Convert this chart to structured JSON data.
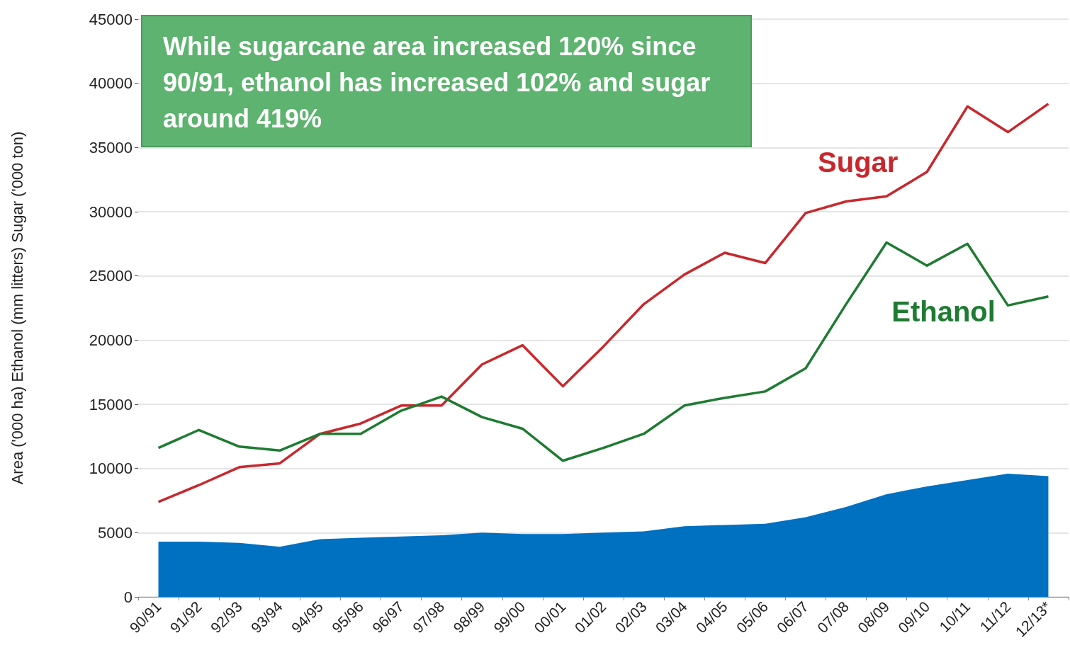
{
  "chart_data": {
    "type": "line",
    "ylabel": "Area ('000 ha) Ethanol (mm litters) Sugar ('000 ton)",
    "annotations": [
      "While sugarcane area increased 120% since 90/91, ethanol has increased 102% and sugar around 419%"
    ],
    "categories": [
      "90/91",
      "91/92",
      "92/93",
      "93/94",
      "94/95",
      "95/96",
      "96/97",
      "97/98",
      "98/99",
      "99/00",
      "00/01",
      "01/02",
      "02/03",
      "03/04",
      "04/05",
      "05/06",
      "06/07",
      "07/08",
      "08/09",
      "09/10",
      "10/11",
      "11/12",
      "12/13*"
    ],
    "series": [
      {
        "type": "area",
        "color": "#0070c0",
        "values": [
          4300,
          4300,
          4200,
          3900,
          4500,
          4600,
          4700,
          4800,
          5000,
          4900,
          4900,
          5000,
          5100,
          5500,
          5600,
          5700,
          6200,
          7000,
          8000,
          8600,
          9100,
          9600,
          9400
        ]
      },
      {
        "name": "Sugar",
        "color": "#c8282d",
        "values": [
          7400,
          8700,
          10100,
          10400,
          12700,
          13500,
          14900,
          14900,
          18100,
          19600,
          16400,
          19500,
          22800,
          25100,
          26800,
          26000,
          29900,
          30800,
          31200,
          33100,
          38200,
          36200,
          38400
        ]
      },
      {
        "name": "Ethanol",
        "color": "#1e7b32",
        "values": [
          11600,
          13000,
          11700,
          11400,
          12700,
          12700,
          14500,
          15600,
          14000,
          13100,
          10600,
          11600,
          12700,
          14900,
          15500,
          16000,
          17800,
          22800,
          27600,
          25800,
          27500,
          22700,
          23400
        ]
      }
    ],
    "ylim": [
      0,
      45000
    ],
    "yticks": [
      0,
      5000,
      10000,
      15000,
      20000,
      25000,
      30000,
      35000,
      40000,
      45000
    ],
    "grid": "y",
    "legend": false,
    "marker": "none",
    "line_style": "solid"
  }
}
